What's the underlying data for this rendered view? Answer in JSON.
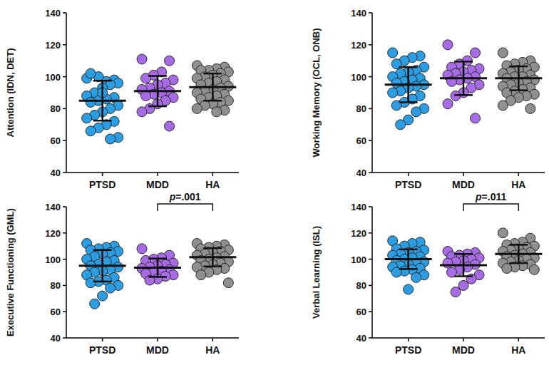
{
  "chart_data": [
    {
      "type": "dot",
      "y_label": "Attention (IDN, DET)",
      "categories": [
        "PTSD",
        "MDD",
        "HA"
      ],
      "colors": [
        "#2b9de3",
        "#a86be6",
        "#8f8f8f"
      ],
      "ylim": [
        40,
        140
      ],
      "yticks": [
        40,
        60,
        80,
        100,
        120,
        140
      ],
      "values": [
        [
          99,
          98,
          97,
          100,
          102,
          96,
          95,
          93,
          90,
          88,
          87,
          86,
          85,
          84,
          82,
          80,
          78,
          76,
          74,
          72,
          70,
          68,
          66,
          62,
          61,
          90
        ],
        [
          111,
          110,
          103,
          101,
          99,
          98,
          96,
          95,
          93,
          92,
          91,
          90,
          89,
          88,
          87,
          85,
          83,
          80,
          78,
          69
        ],
        [
          107,
          106,
          105,
          104,
          104,
          103,
          102,
          101,
          100,
          99,
          98,
          97,
          96,
          95,
          94,
          93,
          92,
          91,
          90,
          89,
          88,
          87,
          86,
          85,
          84,
          83,
          82,
          80,
          79,
          78
        ]
      ],
      "mean": [
        85,
        91,
        93.5
      ],
      "sd": [
        12.5,
        9.5,
        8.5
      ],
      "annotations": []
    },
    {
      "type": "dot",
      "y_label": "Working Memory (OCL, ONB)",
      "categories": [
        "PTSD",
        "MDD",
        "HA"
      ],
      "colors": [
        "#2b9de3",
        "#a86be6",
        "#8f8f8f"
      ],
      "ylim": [
        40,
        140
      ],
      "yticks": [
        40,
        60,
        80,
        100,
        120,
        140
      ],
      "values": [
        [
          115,
          113,
          112,
          110,
          108,
          106,
          104,
          103,
          102,
          100,
          99,
          98,
          97,
          96,
          95,
          94,
          93,
          91,
          90,
          88,
          86,
          84,
          82,
          80,
          78,
          73,
          70
        ],
        [
          120,
          115,
          110,
          108,
          106,
          105,
          104,
          103,
          102,
          101,
          100,
          99,
          98,
          97,
          95,
          93,
          90,
          88,
          83,
          74
        ],
        [
          115,
          110,
          109,
          108,
          107,
          106,
          105,
          104,
          103,
          102,
          101,
          100,
          100,
          99,
          98,
          97,
          96,
          95,
          94,
          93,
          92,
          91,
          90,
          89,
          88,
          87,
          85,
          82,
          80
        ]
      ],
      "mean": [
        95,
        99,
        99
      ],
      "sd": [
        11,
        10.5,
        7.5
      ],
      "annotations": []
    },
    {
      "type": "dot",
      "y_label": "Executive Functioning (GML)",
      "categories": [
        "PTSD",
        "MDD",
        "HA"
      ],
      "colors": [
        "#2b9de3",
        "#a86be6",
        "#8f8f8f"
      ],
      "ylim": [
        40,
        140
      ],
      "yticks": [
        40,
        60,
        80,
        100,
        120,
        140
      ],
      "values": [
        [
          112,
          110,
          109,
          108,
          107,
          106,
          105,
          104,
          102,
          100,
          99,
          98,
          96,
          95,
          94,
          92,
          91,
          90,
          88,
          86,
          84,
          83,
          82,
          80,
          78,
          72,
          66
        ],
        [
          108,
          103,
          101,
          100,
          99,
          97,
          96,
          95,
          94,
          93,
          92,
          91,
          90,
          89,
          88,
          87,
          85,
          84
        ],
        [
          112,
          111,
          110,
          109,
          108,
          107,
          106,
          105,
          104,
          103,
          102,
          101,
          100,
          99,
          98,
          97,
          96,
          95,
          94,
          93,
          92,
          90,
          88,
          82
        ]
      ],
      "mean": [
        95,
        93.5,
        101.5
      ],
      "sd": [
        12,
        7,
        7
      ],
      "annotations": [
        {
          "text": "p=.001",
          "between": [
            "MDD",
            "HA"
          ]
        }
      ]
    },
    {
      "type": "dot",
      "y_label": "Verbal Learning (ISL)",
      "categories": [
        "PTSD",
        "MDD",
        "HA"
      ],
      "colors": [
        "#2b9de3",
        "#a86be6",
        "#8f8f8f"
      ],
      "ylim": [
        40,
        140
      ],
      "yticks": [
        40,
        60,
        80,
        100,
        120,
        140
      ],
      "values": [
        [
          114,
          113,
          112,
          110,
          108,
          107,
          106,
          105,
          104,
          103,
          102,
          101,
          100,
          99,
          98,
          97,
          96,
          95,
          94,
          93,
          92,
          91,
          90,
          88,
          86,
          77
        ],
        [
          106,
          105,
          104,
          103,
          102,
          101,
          100,
          99,
          98,
          97,
          96,
          94,
          92,
          90,
          88,
          85,
          80,
          75
        ],
        [
          120,
          116,
          113,
          112,
          111,
          110,
          109,
          108,
          107,
          106,
          105,
          104,
          103,
          102,
          101,
          100,
          99,
          98,
          97,
          96,
          95,
          94,
          93,
          92
        ]
      ],
      "mean": [
        100,
        95.5,
        104
      ],
      "sd": [
        7.5,
        8.5,
        7
      ],
      "annotations": [
        {
          "text": "p=.011",
          "between": [
            "MDD",
            "HA"
          ]
        }
      ]
    }
  ]
}
